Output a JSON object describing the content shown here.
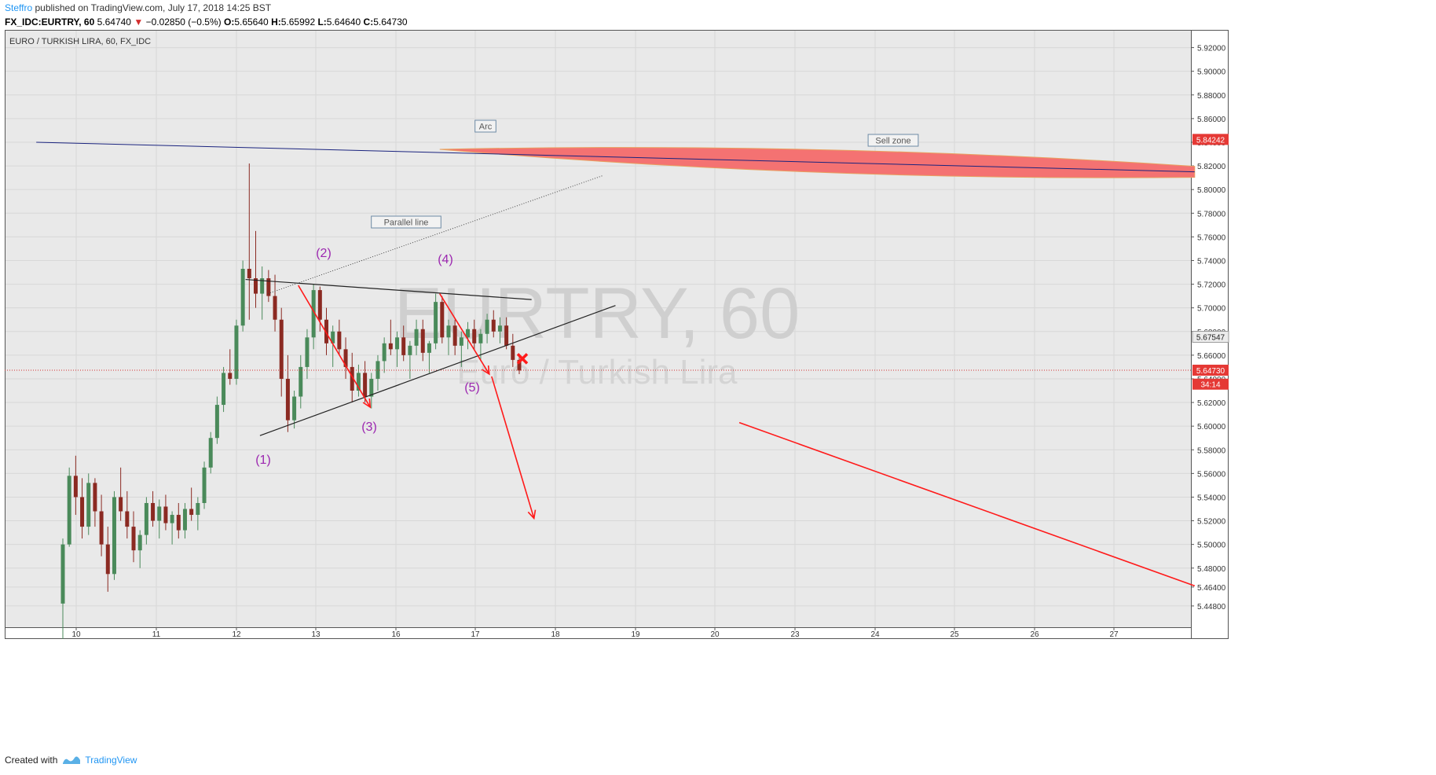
{
  "header": {
    "author": "Steffro",
    "published": "published on TradingView.com, July 17, 2018 14:25 BST",
    "symbol": "FX_IDC:EURTRY, 60",
    "last": "5.64740",
    "change": "−0.02850 (−0.5%)",
    "open_label": "O:",
    "open": "5.65640",
    "high_label": "H:",
    "high": "5.65992",
    "low_label": "L:",
    "low": "5.64640",
    "close_label": "C:",
    "close": "5.64730"
  },
  "footer": {
    "created_with": "Created with",
    "brand": "TradingView"
  },
  "colors": {
    "up": "#4a8a5a",
    "down": "#8b2a22",
    "red": "#ff1a1a",
    "wave_label": "#9c27b0",
    "resistance": "#1a237e",
    "sell_zone_fill": "#f47272",
    "price_badge": "#e53935",
    "plot_bg": "#e9e9e9"
  },
  "chart_data": {
    "type": "candlestick",
    "title": "EURO / TURKISH LIRA, 60, FX_IDC",
    "watermark_main": "EURTRY, 60",
    "watermark_sub": "Euro / Turkish Lira",
    "x_tick_labels": [
      "10",
      "11",
      "12",
      "13",
      "16",
      "17",
      "18",
      "19",
      "20",
      "23",
      "24",
      "25",
      "26",
      "27"
    ],
    "y_ticks": [
      5.448,
      5.464,
      5.48,
      5.5,
      5.52,
      5.54,
      5.56,
      5.58,
      5.6,
      5.62,
      5.64,
      5.66,
      5.68,
      5.7,
      5.72,
      5.74,
      5.76,
      5.78,
      5.8,
      5.82,
      5.84,
      5.86,
      5.88,
      5.9,
      5.92
    ],
    "y_tick_labels": [
      "5.44800",
      "5.46400",
      "5.48000",
      "5.50000",
      "5.52000",
      "5.54000",
      "5.56000",
      "5.58000",
      "5.60000",
      "5.62000",
      "5.64000",
      "5.66000",
      "5.68000",
      "5.70000",
      "5.72000",
      "5.74000",
      "5.76000",
      "5.78000",
      "5.80000",
      "5.82000",
      "5.84000",
      "5.86000",
      "5.88000",
      "5.90000",
      "5.92000"
    ],
    "ylim": [
      5.43,
      5.935
    ],
    "price_badges": [
      {
        "label": "5.84242",
        "value": 5.8424,
        "style": "red"
      },
      {
        "label": "5.67547",
        "value": 5.6755,
        "style": "gray"
      },
      {
        "label": "5.64730",
        "value": 5.6473,
        "style": "red"
      },
      {
        "label": "34:14",
        "value": 5.6355,
        "style": "red"
      }
    ],
    "current_price": 5.6473,
    "annotation_labels": [
      "Arc",
      "Sell zone",
      "Parallel line"
    ],
    "wave_labels": [
      "(1)",
      "(2)",
      "(3)",
      "(4)",
      "(5)"
    ],
    "candles": [
      [
        5.45,
        5.505,
        5.42,
        5.5
      ],
      [
        5.5,
        5.565,
        5.498,
        5.558
      ],
      [
        5.558,
        5.575,
        5.525,
        5.54
      ],
      [
        5.54,
        5.556,
        5.505,
        5.515
      ],
      [
        5.515,
        5.56,
        5.508,
        5.552
      ],
      [
        5.552,
        5.556,
        5.515,
        5.528
      ],
      [
        5.528,
        5.542,
        5.49,
        5.5
      ],
      [
        5.5,
        5.515,
        5.46,
        5.475
      ],
      [
        5.475,
        5.545,
        5.47,
        5.54
      ],
      [
        5.54,
        5.565,
        5.52,
        5.528
      ],
      [
        5.528,
        5.545,
        5.505,
        5.515
      ],
      [
        5.515,
        5.528,
        5.485,
        5.495
      ],
      [
        5.495,
        5.512,
        5.48,
        5.508
      ],
      [
        5.508,
        5.54,
        5.5,
        5.535
      ],
      [
        5.535,
        5.545,
        5.515,
        5.52
      ],
      [
        5.52,
        5.538,
        5.505,
        5.532
      ],
      [
        5.532,
        5.542,
        5.512,
        5.518
      ],
      [
        5.518,
        5.528,
        5.5,
        5.525
      ],
      [
        5.525,
        5.535,
        5.505,
        5.512
      ],
      [
        5.512,
        5.535,
        5.505,
        5.53
      ],
      [
        5.53,
        5.548,
        5.52,
        5.525
      ],
      [
        5.525,
        5.54,
        5.512,
        5.535
      ],
      [
        5.535,
        5.57,
        5.53,
        5.565
      ],
      [
        5.565,
        5.595,
        5.56,
        5.59
      ],
      [
        5.59,
        5.625,
        5.585,
        5.618
      ],
      [
        5.618,
        5.65,
        5.612,
        5.645
      ],
      [
        5.645,
        5.665,
        5.635,
        5.64
      ],
      [
        5.64,
        5.69,
        5.635,
        5.685
      ],
      [
        5.685,
        5.74,
        5.68,
        5.733
      ],
      [
        5.733,
        5.822,
        5.69,
        5.725
      ],
      [
        5.725,
        5.765,
        5.7,
        5.712
      ],
      [
        5.712,
        5.735,
        5.69,
        5.725
      ],
      [
        5.725,
        5.732,
        5.705,
        5.71
      ],
      [
        5.71,
        5.728,
        5.68,
        5.69
      ],
      [
        5.69,
        5.7,
        5.625,
        5.64
      ],
      [
        5.64,
        5.66,
        5.595,
        5.605
      ],
      [
        5.605,
        5.63,
        5.598,
        5.625
      ],
      [
        5.625,
        5.66,
        5.615,
        5.65
      ],
      [
        5.65,
        5.682,
        5.64,
        5.675
      ],
      [
        5.675,
        5.72,
        5.665,
        5.715
      ],
      [
        5.715,
        5.718,
        5.68,
        5.69
      ],
      [
        5.69,
        5.7,
        5.66,
        5.67
      ],
      [
        5.67,
        5.685,
        5.65,
        5.68
      ],
      [
        5.68,
        5.69,
        5.66,
        5.665
      ],
      [
        5.665,
        5.675,
        5.64,
        5.65
      ],
      [
        5.65,
        5.662,
        5.62,
        5.63
      ],
      [
        5.63,
        5.652,
        5.625,
        5.645
      ],
      [
        5.645,
        5.655,
        5.62,
        5.625
      ],
      [
        5.625,
        5.645,
        5.615,
        5.64
      ],
      [
        5.64,
        5.66,
        5.63,
        5.655
      ],
      [
        5.655,
        5.675,
        5.645,
        5.67
      ],
      [
        5.67,
        5.69,
        5.66,
        5.665
      ],
      [
        5.665,
        5.68,
        5.65,
        5.675
      ],
      [
        5.675,
        5.685,
        5.655,
        5.66
      ],
      [
        5.66,
        5.672,
        5.64,
        5.668
      ],
      [
        5.668,
        5.69,
        5.66,
        5.682
      ],
      [
        5.682,
        5.69,
        5.655,
        5.662
      ],
      [
        5.662,
        5.672,
        5.645,
        5.67
      ],
      [
        5.67,
        5.712,
        5.665,
        5.705
      ],
      [
        5.705,
        5.71,
        5.67,
        5.675
      ],
      [
        5.675,
        5.69,
        5.66,
        5.685
      ],
      [
        5.685,
        5.69,
        5.66,
        5.668
      ],
      [
        5.668,
        5.68,
        5.65,
        5.675
      ],
      [
        5.675,
        5.688,
        5.665,
        5.682
      ],
      [
        5.682,
        5.69,
        5.665,
        5.67
      ],
      [
        5.67,
        5.682,
        5.655,
        5.678
      ],
      [
        5.678,
        5.695,
        5.67,
        5.69
      ],
      [
        5.69,
        5.698,
        5.675,
        5.68
      ],
      [
        5.68,
        5.692,
        5.67,
        5.685
      ],
      [
        5.685,
        5.692,
        5.665,
        5.668
      ],
      [
        5.668,
        5.678,
        5.65,
        5.656
      ],
      [
        5.656,
        5.66,
        5.644,
        5.647
      ]
    ],
    "trendlines": [
      {
        "name": "resistance",
        "from": [
          -0.5,
          5.84
        ],
        "to": [
          14.0,
          5.815
        ]
      },
      {
        "name": "triangle-upper",
        "from": [
          2.12,
          5.724
        ],
        "to": [
          5.7,
          5.707
        ]
      },
      {
        "name": "triangle-lower",
        "from": [
          2.3,
          5.592
        ],
        "to": [
          6.75,
          5.702
        ]
      },
      {
        "name": "parallel-line",
        "from": [
          2.4,
          5.712
        ],
        "to": [
          6.6,
          5.812
        ]
      },
      {
        "name": "wave-3-arrow",
        "from": [
          2.78,
          5.719
        ],
        "to": [
          3.68,
          5.616
        ]
      },
      {
        "name": "wave-5-arrow",
        "from": [
          4.55,
          5.712
        ],
        "to": [
          5.17,
          5.644
        ]
      },
      {
        "name": "projection-arrow",
        "from": [
          5.2,
          5.642
        ],
        "to": [
          5.73,
          5.522
        ]
      },
      {
        "name": "long-red-line",
        "from": [
          8.3,
          5.603
        ],
        "to": [
          14.0,
          5.465
        ]
      }
    ],
    "sell_zone": {
      "from": [
        4.55,
        5.834
      ],
      "to": [
        14.0,
        5.815
      ]
    }
  }
}
